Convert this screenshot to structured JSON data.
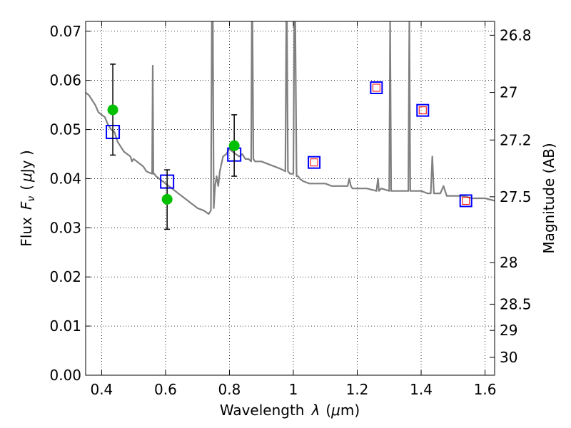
{
  "chart_data": {
    "type": "line",
    "title": "",
    "xlabel": "Wavelength",
    "xlabel_symbol": "λ",
    "xlabel_unit_open": "(",
    "xlabel_unit_mu": "μ",
    "xlabel_unit_rest": "m)",
    "ylabel": "Flux",
    "ylabel_symbol": "F",
    "ylabel_symbol_sub": "ν",
    "ylabel_unit_open": "(",
    "ylabel_unit_mu": "μ",
    "ylabel_unit_rest": "Jy )",
    "y2label": "Magnitude (AB)",
    "xlim": [
      0.35,
      1.63
    ],
    "ylim": [
      0.0,
      0.072
    ],
    "grid": true,
    "x_ticks": [
      0.4,
      0.6,
      0.8,
      1.0,
      1.2,
      1.4,
      1.6
    ],
    "x_tick_labels": [
      "0.4",
      "0.6",
      "0.8",
      "1",
      "1.2",
      "1.4",
      "1.6"
    ],
    "y_ticks": [
      0.0,
      0.01,
      0.02,
      0.03,
      0.04,
      0.05,
      0.06,
      0.07
    ],
    "y_tick_labels": [
      "0.00",
      "0.01",
      "0.02",
      "0.03",
      "0.04",
      "0.05",
      "0.06",
      "0.07"
    ],
    "mag_ticks": [
      26.8,
      27,
      27.2,
      27.5,
      28,
      28.5,
      29,
      30
    ],
    "mag_tick_labels": [
      "26.8",
      "27",
      "27.2",
      "27.5",
      "28",
      "28.5",
      "29",
      "30"
    ],
    "model_spectrum": {
      "color": "#808080",
      "x": [
        0.35,
        0.36,
        0.37,
        0.38,
        0.39,
        0.4,
        0.41,
        0.42,
        0.43,
        0.44,
        0.45,
        0.46,
        0.47,
        0.48,
        0.49,
        0.495,
        0.5,
        0.51,
        0.52,
        0.53,
        0.54,
        0.55,
        0.558,
        0.56,
        0.562,
        0.565,
        0.57,
        0.58,
        0.59,
        0.6,
        0.62,
        0.64,
        0.66,
        0.68,
        0.7,
        0.72,
        0.735,
        0.742,
        0.745,
        0.748,
        0.751,
        0.755,
        0.76,
        0.765,
        0.77,
        0.78,
        0.79,
        0.8,
        0.81,
        0.82,
        0.83,
        0.84,
        0.85,
        0.86,
        0.868,
        0.87,
        0.872,
        0.875,
        0.88,
        0.9,
        0.92,
        0.94,
        0.96,
        0.975,
        0.978,
        0.98,
        0.983,
        0.99,
        1.0,
        1.003,
        1.006,
        1.01,
        1.015,
        1.02,
        1.03,
        1.05,
        1.08,
        1.1,
        1.12,
        1.15,
        1.17,
        1.175,
        1.18,
        1.185,
        1.2,
        1.23,
        1.26,
        1.265,
        1.268,
        1.275,
        1.3,
        1.303,
        1.306,
        1.32,
        1.34,
        1.36,
        1.363,
        1.366,
        1.4,
        1.42,
        1.43,
        1.435,
        1.44,
        1.46,
        1.47,
        1.48,
        1.5,
        1.53,
        1.56,
        1.6,
        1.63
      ],
      "y": [
        0.0575,
        0.057,
        0.056,
        0.055,
        0.0535,
        0.053,
        0.0525,
        0.051,
        0.05,
        0.0495,
        0.0475,
        0.0465,
        0.0455,
        0.045,
        0.0445,
        0.0435,
        0.044,
        0.0435,
        0.043,
        0.0425,
        0.0415,
        0.0412,
        0.041,
        0.063,
        0.041,
        0.041,
        0.0405,
        0.04,
        0.0395,
        0.039,
        0.038,
        0.037,
        0.036,
        0.035,
        0.034,
        0.0335,
        0.0328,
        0.0335,
        0.072,
        0.072,
        0.034,
        0.0385,
        0.0405,
        0.0385,
        0.0415,
        0.0445,
        0.045,
        0.046,
        0.0455,
        0.045,
        0.0445,
        0.045,
        0.044,
        0.044,
        0.0435,
        0.072,
        0.072,
        0.044,
        0.0435,
        0.0435,
        0.043,
        0.0425,
        0.042,
        0.0415,
        0.072,
        0.072,
        0.0415,
        0.041,
        0.041,
        0.072,
        0.072,
        0.0405,
        0.0405,
        0.04,
        0.0395,
        0.039,
        0.039,
        0.039,
        0.0385,
        0.0385,
        0.0385,
        0.04,
        0.0385,
        0.038,
        0.038,
        0.038,
        0.0375,
        0.04,
        0.0375,
        0.038,
        0.0375,
        0.072,
        0.0375,
        0.0375,
        0.0375,
        0.0375,
        0.072,
        0.0375,
        0.0375,
        0.037,
        0.037,
        0.0445,
        0.037,
        0.037,
        0.0385,
        0.0365,
        0.0365,
        0.0365,
        0.036,
        0.036,
        0.0355
      ]
    },
    "series": [
      {
        "kind": "observed_photometry",
        "color": "#00c000",
        "x": [
          0.435,
          0.605,
          0.815
        ],
        "y": [
          0.054,
          0.0358,
          0.0467
        ],
        "yerr_low": [
          0.0448,
          0.0297,
          0.0405
        ],
        "yerr_high": [
          0.0633,
          0.0418,
          0.053
        ]
      },
      {
        "kind": "model_band_flux_observed_bands",
        "color": "#0000ff",
        "x": [
          0.435,
          0.605,
          0.815
        ],
        "y": [
          0.0495,
          0.0394,
          0.0449
        ]
      },
      {
        "kind": "model_band_flux_predicted_bands",
        "color": "#0000ff",
        "inner_color": "#ff0000",
        "x": [
          1.065,
          1.26,
          1.405,
          1.54
        ],
        "y": [
          0.0433,
          0.0585,
          0.0539,
          0.0355
        ]
      }
    ]
  }
}
